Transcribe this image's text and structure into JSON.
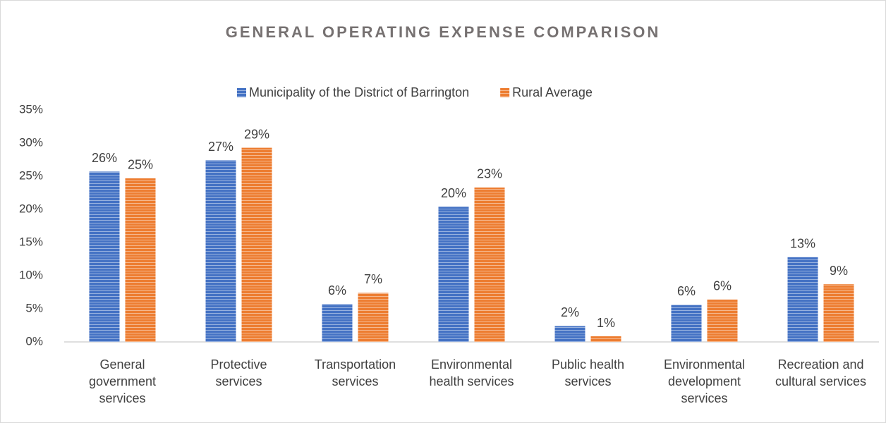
{
  "chart_data": {
    "type": "bar",
    "title": "GENERAL OPERATING EXPENSE COMPARISON",
    "categories": [
      "General government services",
      "Protective services",
      "Transportation services",
      "Environmental health services",
      "Public health services",
      "Environmental development services",
      "Recreation and cultural services"
    ],
    "series": [
      {
        "name": "Municipality of the District of Barrington",
        "color": "#4472c4",
        "values": [
          25.7,
          27.4,
          5.7,
          20.4,
          2.4,
          5.6,
          12.8
        ],
        "value_labels": [
          "26%",
          "27%",
          "6%",
          "20%",
          "2%",
          "6%",
          "13%"
        ]
      },
      {
        "name": "Rural Average",
        "color": "#ed7d31",
        "values": [
          24.7,
          29.3,
          7.4,
          23.3,
          0.85,
          6.4,
          8.7
        ],
        "value_labels": [
          "25%",
          "29%",
          "7%",
          "23%",
          "1%",
          "6%",
          "9%"
        ]
      }
    ],
    "ylim": [
      0,
      35
    ],
    "yticks": [
      {
        "value": 0,
        "label": "0%"
      },
      {
        "value": 5,
        "label": "5%"
      },
      {
        "value": 10,
        "label": "10%"
      },
      {
        "value": 15,
        "label": "15%"
      },
      {
        "value": 20,
        "label": "20%"
      },
      {
        "value": 25,
        "label": "25%"
      },
      {
        "value": 30,
        "label": "30%"
      },
      {
        "value": 35,
        "label": "35%"
      }
    ],
    "grid": false,
    "legend": "top"
  }
}
